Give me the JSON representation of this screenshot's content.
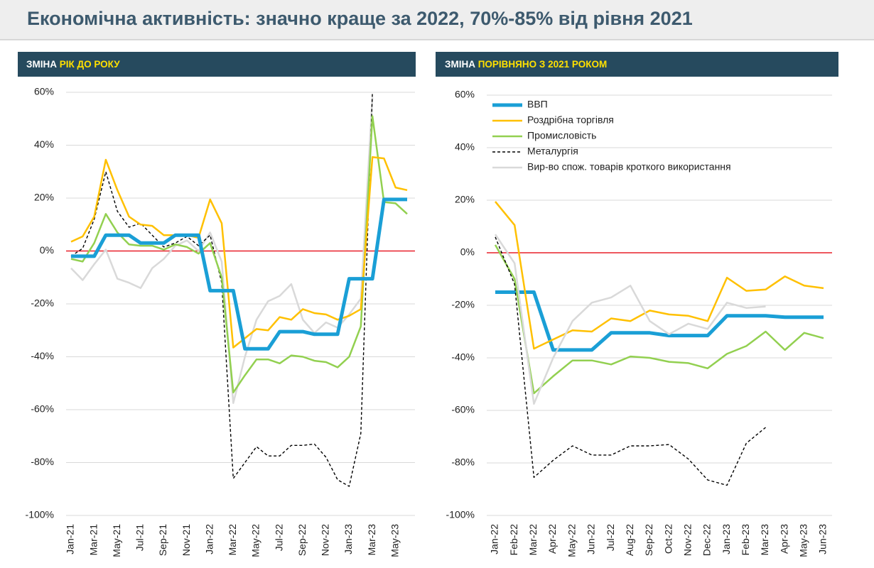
{
  "title": "Економічна активність: значно краще за 2022, 70%-85% від рівня 2021",
  "chart_data": [
    {
      "type": "line",
      "title": "ЗМІНА",
      "title_highlight": "РІК ДО РОКУ",
      "categories": [
        "Jan-21",
        null,
        "Mar-21",
        null,
        "May-21",
        null,
        "Jul-21",
        null,
        "Sep-21",
        null,
        "Nov-21",
        null,
        "Jan-22",
        null,
        "Mar-22",
        null,
        "May-22",
        null,
        "Jul-22",
        null,
        "Sep-22",
        null,
        "Nov-22",
        null,
        "Jan-23",
        null,
        "Mar-23",
        null,
        "May-23",
        null
      ],
      "ylim": [
        -100,
        60
      ],
      "yticks": [
        {
          "value": 60,
          "label": "60%"
        },
        {
          "value": 40,
          "label": "40%"
        },
        {
          "value": 20,
          "label": "20%"
        },
        {
          "value": 0,
          "label": "0%"
        },
        {
          "value": -20,
          "label": "-20%"
        },
        {
          "value": -40,
          "label": "-40%"
        },
        {
          "value": -60,
          "label": "-60%"
        },
        {
          "value": -80,
          "label": "-80%"
        },
        {
          "value": -100,
          "label": "-100%"
        }
      ],
      "grid": true,
      "reference_line": {
        "value": 0,
        "color": "#e8202a"
      },
      "series": [
        {
          "color": "#d9d9d9",
          "style": "solid",
          "values": [
            -6.5,
            -11,
            -5,
            0.5,
            -10.5,
            -12,
            -14,
            -6.5,
            -3,
            2,
            4,
            0,
            7,
            -4,
            -57.5,
            -40,
            -26,
            -19,
            -17,
            -12.5,
            -26,
            -31,
            -27,
            -29,
            -24,
            -18,
            58,
            null,
            null,
            null
          ]
        },
        {
          "color": "#000000",
          "style": "dashed",
          "values": [
            -2,
            1,
            12,
            30,
            15,
            9,
            10.5,
            6,
            1.5,
            3,
            5.5,
            2,
            6,
            -12,
            -86,
            -80,
            -74,
            -77.5,
            -77.5,
            -73.5,
            -73.5,
            -73,
            -78,
            -86.5,
            -89,
            -69,
            60,
            null,
            null,
            null
          ]
        },
        {
          "color": "#92d050",
          "style": "solid",
          "values": [
            -3,
            -4,
            3,
            14,
            7,
            2.5,
            2,
            2,
            0.5,
            2.5,
            1.5,
            -1,
            3,
            -10,
            -53.5,
            -47,
            -41,
            -41,
            -42.5,
            -39.5,
            -40,
            -41.5,
            -42,
            -44,
            -40,
            -28.5,
            51,
            18.5,
            18,
            14
          ]
        },
        {
          "color": "#ffc000",
          "style": "solid",
          "values": [
            3.5,
            5.5,
            13,
            34.5,
            23,
            13,
            10,
            9.5,
            6,
            6,
            6,
            5,
            19.5,
            10.5,
            -36.5,
            -33,
            -29.5,
            -30,
            -25,
            -26,
            -22,
            -23.5,
            -24,
            -26,
            -24.5,
            -22,
            35.5,
            35,
            24,
            23
          ]
        },
        {
          "color": "#1a9fd6",
          "style": "thick",
          "values": [
            -2,
            -2,
            -2,
            6,
            6,
            6,
            3,
            3,
            3,
            6,
            6,
            6,
            -15,
            -15,
            -15,
            -37,
            -37,
            -37,
            -30.5,
            -30.5,
            -30.5,
            -31.5,
            -31.5,
            -31.5,
            -10.5,
            -10.5,
            -10.5,
            19.5,
            19.5,
            19.5
          ]
        }
      ]
    },
    {
      "type": "line",
      "title": "ЗМІНА",
      "title_highlight": "ПОРІВНЯНО З 2021 РОКОМ",
      "categories": [
        "Jan-22",
        "Feb-22",
        "Mar-22",
        "Apr-22",
        "May-22",
        "Jun-22",
        "Jul-22",
        "Aug-22",
        "Sep-22",
        "Oct-22",
        "Nov-22",
        "Dec-22",
        "Jan-23",
        "Feb-23",
        "Mar-23",
        "Apr-23",
        "May-23",
        "Jun-23"
      ],
      "ylim": [
        -100,
        60
      ],
      "yticks": [
        {
          "value": 60,
          "label": "60%"
        },
        {
          "value": 40,
          "label": "40%"
        },
        {
          "value": 20,
          "label": "20%"
        },
        {
          "value": 0,
          "label": "0%"
        },
        {
          "value": -20,
          "label": "-20%"
        },
        {
          "value": -40,
          "label": "-40%"
        },
        {
          "value": -60,
          "label": "-60%"
        },
        {
          "value": -80,
          "label": "-80%"
        },
        {
          "value": -100,
          "label": "-100%"
        }
      ],
      "grid": true,
      "reference_line": {
        "value": 0,
        "color": "#e8202a"
      },
      "legend": "upper-left",
      "series": [
        {
          "name": "ВВП",
          "color": "#1a9fd6",
          "style": "thick",
          "values": [
            -15,
            -15,
            -15,
            -37,
            -37,
            -37,
            -30.5,
            -30.5,
            -30.5,
            -31.5,
            -31.5,
            -31.5,
            -24,
            -24,
            -24,
            -24.5,
            -24.5,
            -24.5
          ]
        },
        {
          "name": "Роздрібна торгівля",
          "color": "#ffc000",
          "style": "solid",
          "values": [
            19.5,
            10.5,
            -36.5,
            -33,
            -29.5,
            -30,
            -25,
            -26,
            -22,
            -23.5,
            -24,
            -26,
            -9.5,
            -14.5,
            -14,
            -9,
            -12.5,
            -13.5
          ]
        },
        {
          "name": "Промисловість",
          "color": "#92d050",
          "style": "solid",
          "values": [
            3,
            -10,
            -53.5,
            -47,
            -41,
            -41,
            -42.5,
            -39.5,
            -40,
            -41.5,
            -42,
            -44,
            -38.5,
            -35.5,
            -30,
            -37,
            -30.5,
            -32.5
          ]
        },
        {
          "name": "Металургія",
          "color": "#000000",
          "style": "dashed",
          "values": [
            6,
            -12,
            -85.5,
            -79,
            -73.5,
            -77,
            -77,
            -73.5,
            -73.5,
            -73,
            -78.5,
            -86.5,
            -88.5,
            -72.5,
            -66.5,
            null,
            null,
            null
          ]
        },
        {
          "name": "Вир-во спож. товарів кроткого використання",
          "color": "#d9d9d9",
          "style": "solid",
          "values": [
            7,
            -4,
            -57.5,
            -40,
            -26,
            -19,
            -17,
            -12.5,
            -26,
            -31,
            -27,
            -29,
            -19,
            -21,
            -20.5,
            null,
            null,
            null
          ]
        }
      ]
    }
  ]
}
